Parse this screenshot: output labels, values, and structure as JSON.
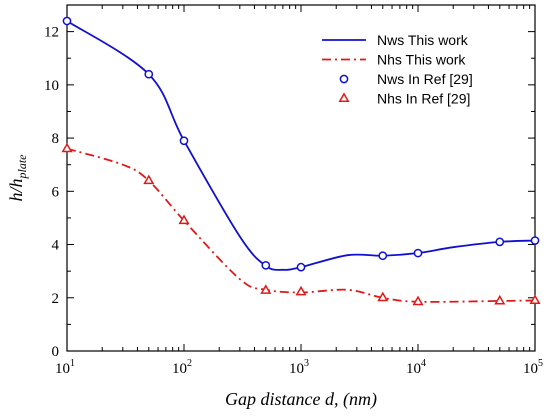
{
  "chart_data": {
    "type": "line",
    "xlabel": "Gap distance d, (nm)",
    "ylabel_main": "h/h",
    "ylabel_sub": "plate",
    "xscale": "log",
    "xlim": [
      10,
      100000
    ],
    "ylim": [
      0,
      13
    ],
    "x_tick_base": "10",
    "x_tick_exponents": [
      "1",
      "2",
      "3",
      "4",
      "5"
    ],
    "y_ticks": [
      "0",
      "2",
      "4",
      "6",
      "8",
      "10",
      "12"
    ],
    "legend_position": "top-right",
    "series": [
      {
        "name": "Nws This work",
        "style": "solid-line",
        "color": "#1010d0",
        "points": [
          [
            10,
            12.4
          ],
          [
            50,
            10.4
          ],
          [
            100,
            7.9
          ],
          [
            300,
            4.3
          ],
          [
            500,
            3.2
          ],
          [
            700,
            3.05
          ],
          [
            1000,
            3.15
          ],
          [
            2500,
            3.6
          ],
          [
            5000,
            3.58
          ],
          [
            10000,
            3.68
          ],
          [
            20000,
            3.9
          ],
          [
            50000,
            4.1
          ],
          [
            100000,
            4.15
          ]
        ]
      },
      {
        "name": "Nhs This work",
        "style": "dash-dot-line",
        "color": "#e01818",
        "points": [
          [
            10,
            7.6
          ],
          [
            30,
            7.0
          ],
          [
            50,
            6.4
          ],
          [
            100,
            4.9
          ],
          [
            300,
            2.7
          ],
          [
            500,
            2.3
          ],
          [
            1000,
            2.2
          ],
          [
            2500,
            2.3
          ],
          [
            5000,
            2.0
          ],
          [
            10000,
            1.85
          ],
          [
            50000,
            1.88
          ],
          [
            100000,
            1.9
          ]
        ]
      },
      {
        "name": "Nws In Ref [29]",
        "style": "circle-marker",
        "color": "#1010d0",
        "points": [
          [
            10,
            12.4
          ],
          [
            50,
            10.4
          ],
          [
            100,
            7.9
          ],
          [
            500,
            3.22
          ],
          [
            1000,
            3.15
          ],
          [
            5000,
            3.58
          ],
          [
            10000,
            3.68
          ],
          [
            50000,
            4.1
          ],
          [
            100000,
            4.15
          ]
        ]
      },
      {
        "name": "Nhs In Ref [29]",
        "style": "triangle-marker",
        "color": "#e01818",
        "points": [
          [
            10,
            7.6
          ],
          [
            50,
            6.4
          ],
          [
            100,
            4.9
          ],
          [
            500,
            2.28
          ],
          [
            1000,
            2.22
          ],
          [
            5000,
            2.0
          ],
          [
            10000,
            1.85
          ],
          [
            50000,
            1.88
          ],
          [
            100000,
            1.9
          ]
        ]
      }
    ]
  }
}
